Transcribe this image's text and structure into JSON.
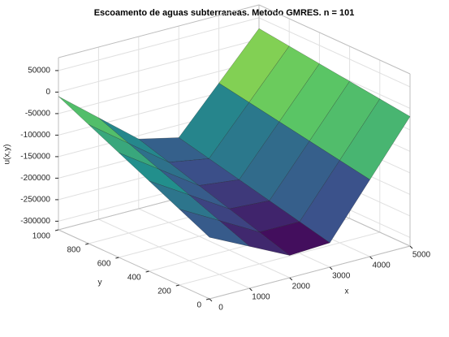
{
  "chart_data": {
    "type": "surface",
    "title": "Escoamento de aguas subterraneas. Metodo GMRES. n = 101",
    "xlabel": "x",
    "ylabel": "y",
    "zlabel": "u(x,y)",
    "colormap": "viridis",
    "grid": true,
    "x": [
      0,
      1000,
      2000,
      3000,
      4000,
      5000
    ],
    "y": [
      0,
      200,
      400,
      600,
      800,
      1000
    ],
    "z": [
      [
        -177000,
        -222600,
        -268100,
        -263400,
        -141200,
        -19000
      ],
      [
        -143600,
        -194900,
        -246100,
        -246600,
        -128400,
        -10200
      ],
      [
        -110200,
        -167200,
        -224100,
        -229800,
        -115600,
        -1400
      ],
      [
        -76800,
        -139500,
        -202100,
        -213000,
        -102800,
        7400
      ],
      [
        -43400,
        -111800,
        -180100,
        -196200,
        -90000,
        16200
      ],
      [
        -10000,
        -84100,
        -158100,
        -179400,
        -77200,
        25000
      ]
    ],
    "xlim": [
      0,
      5000
    ],
    "xticks": [
      0,
      1000,
      2000,
      3000,
      4000,
      5000
    ],
    "ylim": [
      0,
      1000
    ],
    "yticks": [
      0,
      200,
      400,
      600,
      800,
      1000
    ],
    "zlim": [
      -320000,
      80000
    ],
    "zticks": [
      50000,
      0,
      -50000,
      -100000,
      -150000,
      -200000,
      -250000,
      -300000
    ]
  }
}
